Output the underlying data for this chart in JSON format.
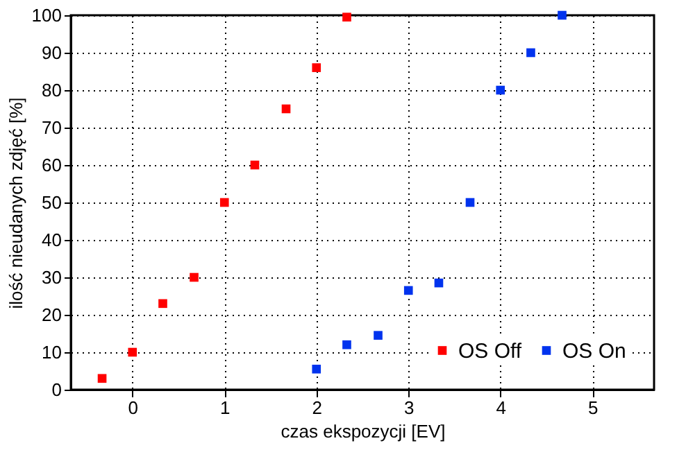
{
  "chart_data": {
    "type": "scatter",
    "xlabel": "czas ekspozycji [EV]",
    "ylabel": "ilość nieudanych zdjęć [%]",
    "xlim": [
      -0.67,
      5.67
    ],
    "xticks": [
      0,
      1,
      2,
      3,
      4,
      5
    ],
    "ylim": [
      0,
      100
    ],
    "yticks": [
      0,
      10,
      20,
      30,
      40,
      50,
      60,
      70,
      80,
      90,
      100
    ],
    "grid": true,
    "legend": "bottom right",
    "marker": "square",
    "series": [
      {
        "name": "OS Off",
        "color": "#ff0000",
        "x": [
          -0.33,
          0,
          0.33,
          0.67,
          1,
          1.33,
          1.67,
          2,
          2.33
        ],
        "values": [
          3,
          10,
          23,
          30,
          50,
          60,
          75,
          86,
          99.5
        ]
      },
      {
        "name": "OS On",
        "color": "#0033ee",
        "x": [
          2,
          2.33,
          2.67,
          3,
          3.33,
          3.67,
          4,
          4.33,
          4.67
        ],
        "values": [
          5.5,
          12,
          14.5,
          26.5,
          28.5,
          50,
          80,
          90,
          100
        ]
      }
    ]
  }
}
